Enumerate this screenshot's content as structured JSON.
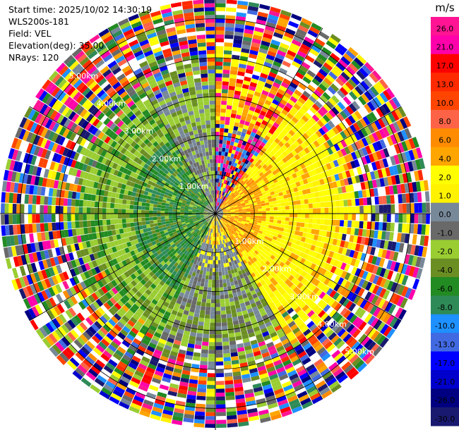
{
  "header": {
    "start_time": "Start time: 2025/10/02 14:30:19",
    "instrument": "WLS200s-181",
    "field": "Field: VEL",
    "elevation": "Elevation(deg): 35.00",
    "nrays": "NRays: 120"
  },
  "plot": {
    "n_rays": 120,
    "max_range_km": 5.5,
    "range_ring_labels": [
      "1.00km",
      "2.00km",
      "3.00km",
      "4.00km",
      "5.00km"
    ],
    "range_rings_km": [
      1,
      2,
      3,
      4,
      5
    ],
    "spoke_angles_deg": [
      0,
      30,
      60,
      90,
      120,
      150,
      180,
      210,
      240,
      270,
      300,
      330
    ]
  },
  "colorbar": {
    "unit": "m/s",
    "bins": [
      {
        "label": "26.0",
        "color": "#ff1493"
      },
      {
        "label": "21.0",
        "color": "#ff00aa"
      },
      {
        "label": "17.0",
        "color": "#ff0000"
      },
      {
        "label": "13.0",
        "color": "#ff2a00"
      },
      {
        "label": "10.0",
        "color": "#ff4500"
      },
      {
        "label": "8.0",
        "color": "#ff6347"
      },
      {
        "label": "6.0",
        "color": "#ff8c00"
      },
      {
        "label": "4.0",
        "color": "#ffa500"
      },
      {
        "label": "2.0",
        "color": "#ffff00"
      },
      {
        "label": "1.0",
        "color": "#fff200"
      },
      {
        "label": "0.0",
        "color": "#778899"
      },
      {
        "label": "-1.0",
        "color": "#696969"
      },
      {
        "label": "-2.0",
        "color": "#9acd32"
      },
      {
        "label": "-4.0",
        "color": "#6b8e23"
      },
      {
        "label": "-6.0",
        "color": "#228b22"
      },
      {
        "label": "-8.0",
        "color": "#2e8b57"
      },
      {
        "label": "-10.0",
        "color": "#1e90ff"
      },
      {
        "label": "-13.0",
        "color": "#4169e1"
      },
      {
        "label": "-17.0",
        "color": "#0000ff"
      },
      {
        "label": "-21.0",
        "color": "#0000cd"
      },
      {
        "label": "-26.0",
        "color": "#000080"
      },
      {
        "label": "-30.0",
        "color": "#191970"
      }
    ]
  }
}
